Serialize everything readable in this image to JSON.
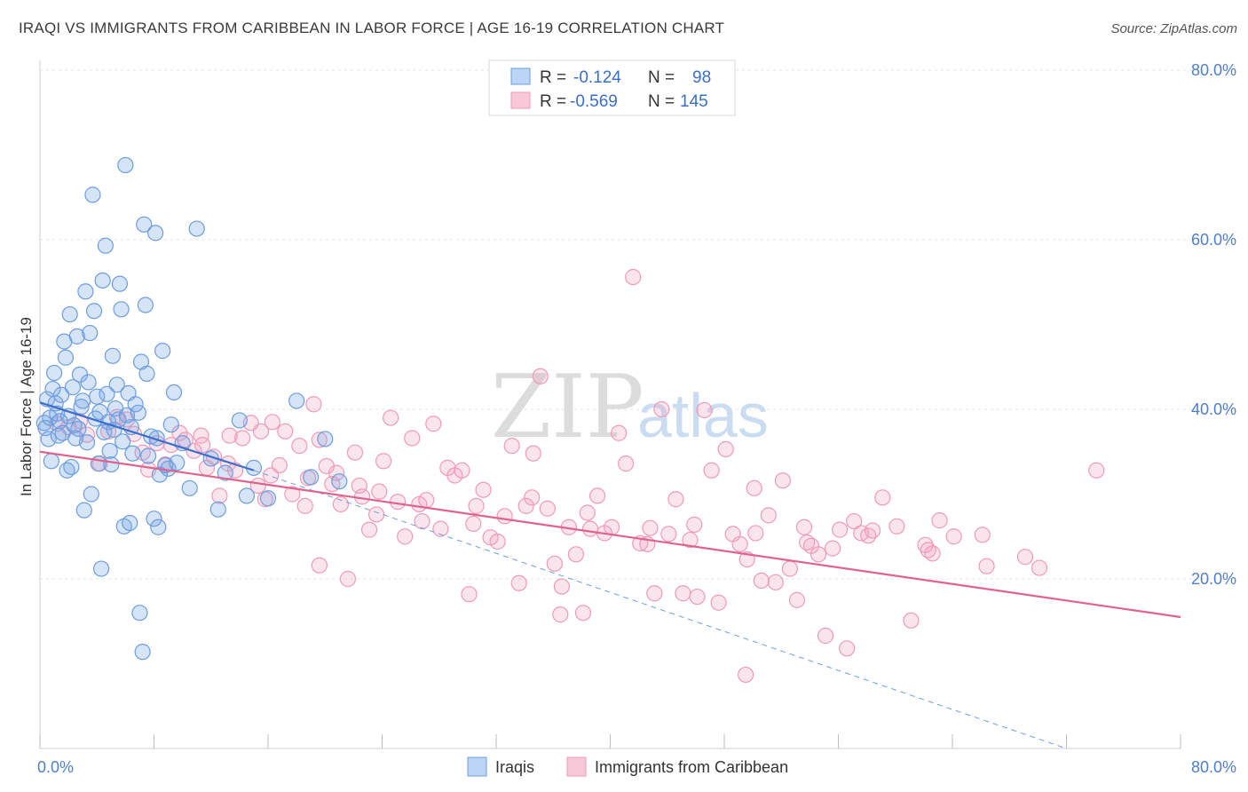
{
  "title": "IRAQI VS IMMIGRANTS FROM CARIBBEAN IN LABOR FORCE | AGE 16-19 CORRELATION CHART",
  "source": "Source: ZipAtlas.com",
  "watermark": {
    "zip": "ZIP",
    "atlas": "atlas"
  },
  "colors": {
    "blue": "#6d9de0",
    "blue_line": "#3b6fcb",
    "pink": "#ef9ab8",
    "pink_line": "#e0628f"
  },
  "chart_data": {
    "type": "scatter",
    "title": "IRAQI VS IMMIGRANTS FROM CARIBBEAN IN LABOR FORCE | AGE 16-19 CORRELATION CHART",
    "xlabel": "",
    "ylabel": "In Labor Force | Age 16-19",
    "xlim": [
      0,
      80
    ],
    "ylim": [
      0,
      80
    ],
    "x_tick_labels": [
      "0.0%",
      "80.0%"
    ],
    "y_ticks": [
      20,
      40,
      60,
      80
    ],
    "y_tick_labels": [
      "20.0%",
      "40.0%",
      "60.0%",
      "80.0%"
    ],
    "grid": true,
    "legend_position": "top-center",
    "legend": [
      {
        "r_label": "R =",
        "r_value": "-0.124",
        "n_label": "N =",
        "n_value": "98"
      },
      {
        "r_label": "R =",
        "r_value": "-0.569",
        "n_label": "N =",
        "n_value": "145"
      }
    ],
    "series": [
      {
        "name": "Iraqis",
        "color": "#6d9de0",
        "trend": {
          "x": [
            0,
            15
          ],
          "y": [
            40.8,
            32.8
          ]
        },
        "trend_dashed": {
          "x": [
            15,
            72
          ],
          "y": [
            32.8,
            0
          ]
        },
        "points": [
          [
            0.3,
            38.4
          ],
          [
            0.4,
            37.8
          ],
          [
            0.5,
            41.2
          ],
          [
            0.6,
            36.5
          ],
          [
            0.7,
            39.0
          ],
          [
            0.8,
            33.9
          ],
          [
            0.9,
            42.4
          ],
          [
            1.0,
            44.3
          ],
          [
            1.1,
            40.7
          ],
          [
            1.2,
            39.5
          ],
          [
            1.3,
            36.9
          ],
          [
            1.4,
            38.6
          ],
          [
            1.5,
            41.7
          ],
          [
            1.6,
            37.2
          ],
          [
            1.7,
            48.0
          ],
          [
            1.8,
            46.1
          ],
          [
            1.9,
            32.8
          ],
          [
            2.0,
            39.2
          ],
          [
            2.1,
            51.2
          ],
          [
            2.2,
            33.2
          ],
          [
            2.3,
            42.6
          ],
          [
            2.4,
            38.1
          ],
          [
            2.5,
            36.6
          ],
          [
            2.6,
            48.6
          ],
          [
            2.7,
            37.7
          ],
          [
            2.8,
            44.1
          ],
          [
            2.9,
            40.3
          ],
          [
            3.0,
            41.0
          ],
          [
            3.1,
            28.1
          ],
          [
            3.2,
            53.9
          ],
          [
            3.3,
            36.1
          ],
          [
            3.4,
            43.2
          ],
          [
            3.5,
            49.0
          ],
          [
            3.6,
            30.0
          ],
          [
            3.7,
            65.3
          ],
          [
            3.8,
            51.6
          ],
          [
            3.9,
            38.9
          ],
          [
            4.0,
            41.5
          ],
          [
            4.1,
            33.6
          ],
          [
            4.2,
            39.7
          ],
          [
            4.3,
            21.2
          ],
          [
            4.4,
            55.2
          ],
          [
            4.5,
            37.3
          ],
          [
            4.6,
            59.3
          ],
          [
            4.7,
            41.8
          ],
          [
            4.8,
            38.5
          ],
          [
            4.9,
            35.1
          ],
          [
            5.0,
            33.5
          ],
          [
            5.1,
            46.3
          ],
          [
            5.2,
            37.6
          ],
          [
            5.3,
            40.1
          ],
          [
            5.4,
            42.9
          ],
          [
            5.5,
            38.8
          ],
          [
            5.6,
            54.8
          ],
          [
            5.7,
            51.8
          ],
          [
            5.8,
            36.2
          ],
          [
            5.9,
            26.2
          ],
          [
            6.0,
            68.8
          ],
          [
            6.1,
            39.3
          ],
          [
            6.2,
            41.9
          ],
          [
            6.3,
            26.6
          ],
          [
            6.4,
            37.9
          ],
          [
            6.5,
            34.8
          ],
          [
            6.7,
            40.6
          ],
          [
            6.9,
            39.6
          ],
          [
            7.0,
            16.0
          ],
          [
            7.1,
            45.6
          ],
          [
            7.2,
            11.4
          ],
          [
            7.3,
            61.8
          ],
          [
            7.4,
            52.3
          ],
          [
            7.5,
            44.2
          ],
          [
            7.6,
            34.5
          ],
          [
            7.8,
            36.8
          ],
          [
            8.0,
            27.1
          ],
          [
            8.1,
            60.8
          ],
          [
            8.2,
            36.6
          ],
          [
            8.3,
            26.1
          ],
          [
            8.4,
            32.3
          ],
          [
            8.6,
            46.9
          ],
          [
            8.8,
            33.4
          ],
          [
            9.0,
            33.0
          ],
          [
            9.2,
            38.2
          ],
          [
            9.4,
            42.0
          ],
          [
            9.6,
            33.7
          ],
          [
            10.0,
            36.0
          ],
          [
            10.5,
            30.7
          ],
          [
            11.0,
            61.3
          ],
          [
            12.0,
            34.2
          ],
          [
            12.5,
            28.2
          ],
          [
            13.0,
            32.5
          ],
          [
            14.0,
            38.7
          ],
          [
            14.5,
            29.8
          ],
          [
            15.0,
            33.1
          ],
          [
            16.0,
            29.5
          ],
          [
            18.0,
            41.0
          ],
          [
            19.0,
            32.0
          ],
          [
            20.0,
            36.5
          ],
          [
            21.0,
            31.5
          ]
        ]
      },
      {
        "name": "Immigrants from Caribbean",
        "color": "#ef9ab8",
        "trend": {
          "x": [
            0,
            80
          ],
          "y": [
            35.0,
            15.5
          ]
        },
        "points": [
          [
            1.2,
            38.3
          ],
          [
            2.0,
            37.9
          ],
          [
            2.8,
            38.6
          ],
          [
            3.3,
            37.0
          ],
          [
            4.2,
            33.6
          ],
          [
            4.8,
            37.4
          ],
          [
            5.4,
            39.1
          ],
          [
            6.1,
            38.8
          ],
          [
            6.6,
            37.1
          ],
          [
            7.2,
            34.9
          ],
          [
            7.6,
            32.9
          ],
          [
            8.2,
            36.0
          ],
          [
            8.8,
            33.5
          ],
          [
            9.2,
            35.8
          ],
          [
            9.8,
            37.2
          ],
          [
            10.2,
            36.4
          ],
          [
            10.8,
            35.1
          ],
          [
            11.3,
            36.9
          ],
          [
            11.7,
            33.1
          ],
          [
            12.2,
            34.4
          ],
          [
            12.6,
            29.8
          ],
          [
            13.2,
            33.6
          ],
          [
            13.7,
            32.8
          ],
          [
            14.2,
            36.6
          ],
          [
            14.8,
            38.4
          ],
          [
            15.3,
            31.0
          ],
          [
            15.8,
            29.4
          ],
          [
            16.3,
            38.5
          ],
          [
            16.8,
            33.4
          ],
          [
            17.2,
            37.4
          ],
          [
            17.7,
            30.0
          ],
          [
            18.2,
            35.7
          ],
          [
            18.6,
            28.6
          ],
          [
            19.2,
            40.6
          ],
          [
            19.6,
            36.4
          ],
          [
            20.1,
            33.3
          ],
          [
            20.5,
            31.2
          ],
          [
            21.1,
            28.8
          ],
          [
            21.6,
            20.0
          ],
          [
            22.1,
            34.9
          ],
          [
            22.6,
            29.7
          ],
          [
            23.1,
            25.8
          ],
          [
            23.6,
            27.6
          ],
          [
            24.1,
            33.9
          ],
          [
            24.6,
            39.0
          ],
          [
            25.1,
            29.1
          ],
          [
            25.6,
            25.0
          ],
          [
            26.1,
            36.6
          ],
          [
            26.6,
            28.8
          ],
          [
            27.1,
            29.3
          ],
          [
            27.6,
            38.3
          ],
          [
            28.1,
            25.9
          ],
          [
            28.6,
            33.1
          ],
          [
            29.1,
            32.2
          ],
          [
            29.6,
            32.8
          ],
          [
            30.1,
            18.2
          ],
          [
            30.6,
            28.6
          ],
          [
            31.1,
            30.5
          ],
          [
            31.6,
            24.9
          ],
          [
            32.1,
            24.4
          ],
          [
            32.6,
            27.4
          ],
          [
            33.1,
            35.7
          ],
          [
            33.6,
            19.5
          ],
          [
            34.1,
            28.6
          ],
          [
            34.6,
            34.8
          ],
          [
            35.1,
            43.9
          ],
          [
            35.6,
            28.3
          ],
          [
            36.1,
            21.8
          ],
          [
            36.6,
            19.1
          ],
          [
            37.1,
            26.1
          ],
          [
            37.6,
            22.9
          ],
          [
            38.1,
            16.0
          ],
          [
            38.6,
            25.9
          ],
          [
            39.1,
            29.8
          ],
          [
            39.6,
            25.4
          ],
          [
            40.1,
            26.1
          ],
          [
            40.6,
            37.2
          ],
          [
            41.1,
            33.6
          ],
          [
            41.6,
            55.6
          ],
          [
            42.1,
            24.2
          ],
          [
            42.6,
            24.1
          ],
          [
            43.1,
            18.3
          ],
          [
            43.6,
            40.0
          ],
          [
            44.1,
            25.3
          ],
          [
            44.6,
            29.4
          ],
          [
            45.1,
            18.3
          ],
          [
            45.6,
            24.6
          ],
          [
            46.1,
            17.9
          ],
          [
            46.6,
            39.9
          ],
          [
            47.1,
            32.8
          ],
          [
            47.6,
            17.2
          ],
          [
            48.1,
            35.3
          ],
          [
            48.6,
            25.3
          ],
          [
            49.1,
            24.1
          ],
          [
            49.6,
            22.3
          ],
          [
            50.1,
            30.7
          ],
          [
            50.6,
            19.8
          ],
          [
            51.1,
            27.5
          ],
          [
            51.6,
            19.6
          ],
          [
            52.1,
            31.6
          ],
          [
            52.6,
            21.2
          ],
          [
            53.1,
            17.5
          ],
          [
            53.6,
            26.1
          ],
          [
            54.1,
            23.9
          ],
          [
            54.6,
            22.9
          ],
          [
            55.1,
            13.3
          ],
          [
            55.6,
            23.6
          ],
          [
            56.1,
            25.8
          ],
          [
            56.6,
            11.8
          ],
          [
            57.1,
            26.8
          ],
          [
            57.6,
            25.4
          ],
          [
            58.1,
            25.1
          ],
          [
            59.1,
            29.6
          ],
          [
            60.1,
            26.2
          ],
          [
            61.1,
            15.1
          ],
          [
            62.1,
            24.0
          ],
          [
            62.6,
            23.0
          ],
          [
            63.1,
            26.9
          ],
          [
            64.1,
            25.0
          ],
          [
            66.1,
            25.2
          ],
          [
            69.1,
            22.6
          ],
          [
            70.1,
            21.3
          ],
          [
            74.1,
            32.8
          ],
          [
            49.5,
            8.7
          ],
          [
            36.5,
            15.8
          ],
          [
            19.6,
            21.6
          ],
          [
            11.4,
            35.8
          ],
          [
            13.3,
            36.9
          ],
          [
            15.5,
            37.4
          ],
          [
            16.2,
            32.2
          ],
          [
            18.8,
            31.9
          ],
          [
            20.8,
            32.5
          ],
          [
            22.4,
            31.0
          ],
          [
            23.8,
            30.3
          ],
          [
            26.8,
            26.8
          ],
          [
            30.4,
            26.5
          ],
          [
            34.5,
            29.6
          ],
          [
            38.4,
            27.8
          ],
          [
            42.8,
            26.0
          ],
          [
            45.9,
            26.4
          ],
          [
            50.2,
            25.4
          ],
          [
            53.8,
            24.3
          ],
          [
            58.4,
            25.7
          ],
          [
            62.3,
            23.4
          ],
          [
            66.4,
            21.5
          ]
        ]
      }
    ]
  }
}
